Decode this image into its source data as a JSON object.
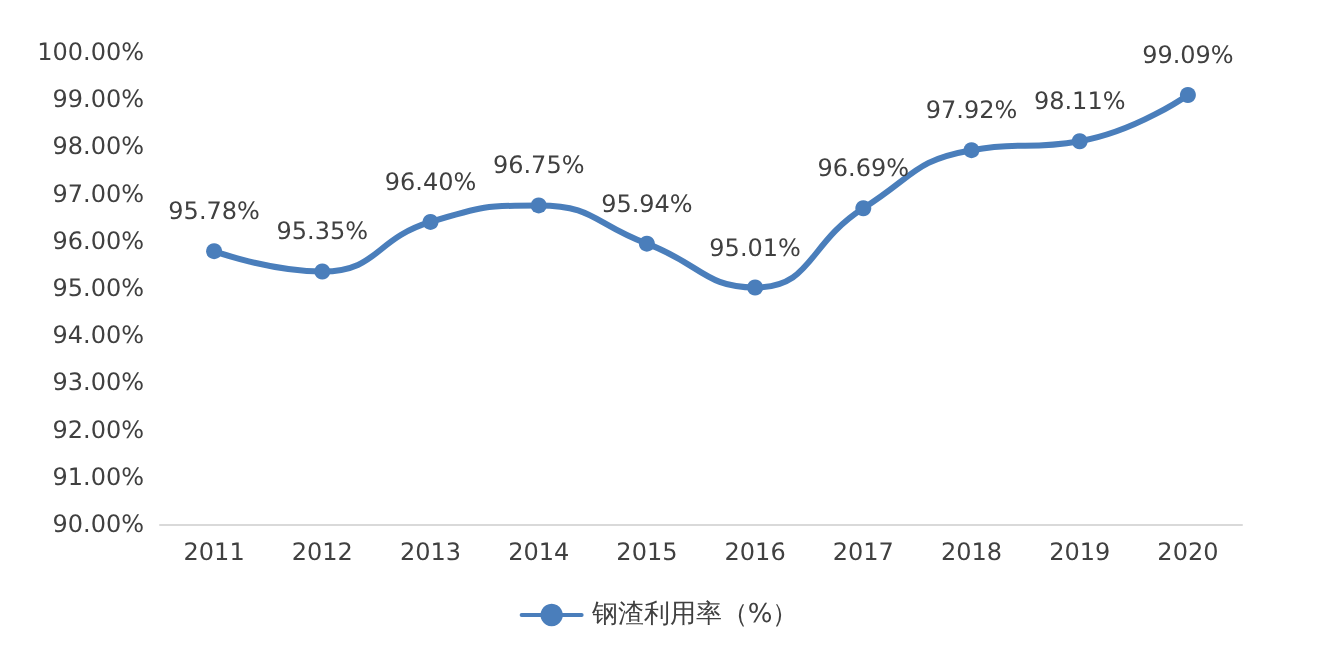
{
  "chart_data": {
    "type": "line",
    "categories": [
      "2011",
      "2012",
      "2013",
      "2014",
      "2015",
      "2016",
      "2017",
      "2018",
      "2019",
      "2020"
    ],
    "series": [
      {
        "name": "钢渣利用率（%）",
        "color": "#4a7ebb",
        "values": [
          95.78,
          95.35,
          96.4,
          96.75,
          95.94,
          95.01,
          96.69,
          97.92,
          98.11,
          99.09
        ],
        "value_labels": [
          "95.78%",
          "95.35%",
          "96.40%",
          "96.75%",
          "95.94%",
          "95.01%",
          "96.69%",
          "97.92%",
          "98.11%",
          "99.09%"
        ]
      }
    ],
    "ylim": [
      90,
      100
    ],
    "yticks": [
      {
        "value": 90,
        "label": "90.00%"
      },
      {
        "value": 91,
        "label": "91.00%"
      },
      {
        "value": 92,
        "label": "92.00%"
      },
      {
        "value": 93,
        "label": "93.00%"
      },
      {
        "value": 94,
        "label": "94.00%"
      },
      {
        "value": 95,
        "label": "95.00%"
      },
      {
        "value": 96,
        "label": "96.00%"
      },
      {
        "value": 97,
        "label": "97.00%"
      },
      {
        "value": 98,
        "label": "98.00%"
      },
      {
        "value": 99,
        "label": "99.00%"
      },
      {
        "value": 100,
        "label": "100.00%"
      }
    ],
    "grid": false,
    "legend": "bottom",
    "marker": "circle",
    "line_style": "solid"
  }
}
